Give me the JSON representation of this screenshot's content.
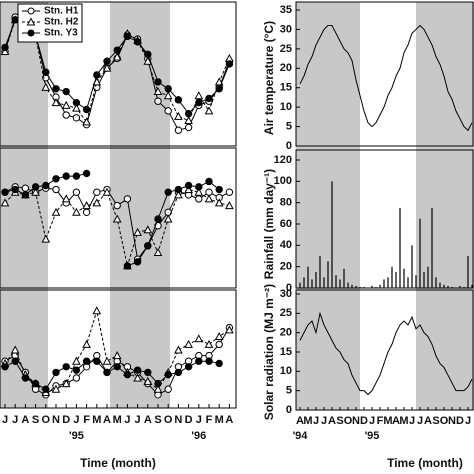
{
  "chart_data": [
    {
      "type": "line",
      "ylim": [
        0,
        100
      ],
      "legend": "upper left",
      "series": [
        {
          "name": "Stn. H1",
          "color": "#000",
          "marker": "open-circle",
          "dash": false,
          "values": [
            67,
            92,
            83,
            79,
            48,
            34,
            21,
            19,
            14,
            41,
            55,
            62,
            79,
            76,
            62,
            31,
            24,
            10,
            12,
            28,
            31,
            41,
            60
          ]
        },
        {
          "name": "Stn. H2",
          "color": "#000",
          "marker": "open-triangle",
          "dash": true,
          "values": [
            67,
            90,
            82,
            78,
            41,
            30,
            28,
            26,
            16,
            45,
            55,
            63,
            80,
            75,
            60,
            38,
            35,
            20,
            17,
            35,
            24,
            45,
            62
          ]
        },
        {
          "name": "Stn. Y3",
          "color": "#000",
          "marker": "filled-circle",
          "dash": false,
          "values": [
            70,
            90,
            84,
            79,
            52,
            40,
            38,
            30,
            25,
            50,
            60,
            68,
            78,
            74,
            65,
            45,
            40,
            32,
            22,
            30,
            33,
            40,
            58
          ]
        }
      ]
    },
    {
      "type": "line",
      "ylim": [
        0,
        100
      ],
      "series": [
        {
          "color": "#000",
          "marker": "open-circle",
          "dash": false,
          "values": [
            70,
            74,
            73,
            70,
            73,
            72,
            62,
            70,
            55,
            70,
            72,
            60,
            65,
            20,
            30,
            45,
            55,
            70,
            68,
            65,
            70,
            66,
            70
          ]
        },
        {
          "color": "#000",
          "marker": "open-triangle",
          "dash": true,
          "values": [
            62,
            70,
            68,
            70,
            35,
            55,
            65,
            55,
            60,
            62,
            70,
            50,
            15,
            40,
            42,
            25,
            50,
            68,
            72,
            70,
            65,
            62,
            60
          ]
        },
        {
          "color": "#000",
          "marker": "filled-circle",
          "dash": false,
          "values": [
            70,
            72,
            68,
            74,
            75,
            80,
            82,
            82,
            84,
            null,
            null,
            null,
            15,
            18,
            30,
            50,
            70,
            72,
            75,
            74,
            78,
            72,
            null
          ]
        }
      ]
    },
    {
      "type": "line",
      "ylim": [
        0,
        100
      ],
      "x_label": "Time (month)",
      "categories": [
        "J",
        "J",
        "A",
        "S",
        "O",
        "N",
        "D",
        "J",
        "F",
        "M",
        "A",
        "M",
        "J",
        "J",
        "A",
        "S",
        "O",
        "N",
        "D",
        "J",
        "F",
        "M",
        "A"
      ],
      "year_labels": [
        null,
        null,
        null,
        null,
        null,
        null,
        null,
        "'95",
        null,
        null,
        null,
        null,
        null,
        null,
        null,
        null,
        null,
        null,
        null,
        "'96",
        null,
        null,
        null
      ],
      "series": [
        {
          "color": "#000",
          "marker": "open-circle",
          "dash": false,
          "values": [
            40,
            45,
            30,
            15,
            10,
            18,
            20,
            25,
            35,
            45,
            30,
            40,
            35,
            30,
            20,
            10,
            15,
            35,
            40,
            45,
            45,
            55,
            70
          ]
        },
        {
          "color": "#000",
          "marker": "open-triangle",
          "dash": true,
          "values": [
            38,
            50,
            28,
            20,
            12,
            15,
            20,
            40,
            55,
            85,
            40,
            45,
            30,
            25,
            22,
            15,
            30,
            50,
            55,
            60,
            55,
            62,
            68
          ]
        },
        {
          "color": "#000",
          "marker": "filled-circle",
          "dash": false,
          "values": [
            35,
            40,
            25,
            20,
            15,
            30,
            35,
            32,
            40,
            40,
            30,
            35,
            28,
            32,
            30,
            20,
            28,
            30,
            35,
            40,
            40,
            38,
            null
          ]
        }
      ]
    },
    {
      "type": "line",
      "y_label": "Air temperature (°C)",
      "ylim": [
        0,
        35
      ],
      "yticks": [
        0,
        5,
        10,
        15,
        20,
        25,
        30,
        35
      ],
      "color": "#000",
      "values": [
        16,
        18,
        21,
        23,
        26,
        28,
        30,
        31,
        31,
        29,
        27,
        25,
        24,
        22,
        17,
        13,
        9,
        6,
        5,
        6,
        8,
        10,
        13,
        15,
        18,
        20,
        24,
        26,
        29,
        30,
        31,
        30,
        28,
        26,
        23,
        21,
        18,
        14,
        12,
        9,
        7,
        5,
        4,
        6
      ]
    },
    {
      "type": "bar",
      "y_label": "Rainfall (mm day⁻¹)",
      "ylim": [
        0,
        120
      ],
      "yticks": [
        0,
        20,
        40,
        60,
        80,
        100,
        120
      ],
      "color": "#000",
      "values": [
        5,
        10,
        20,
        8,
        15,
        30,
        10,
        25,
        100,
        12,
        8,
        18,
        5,
        3,
        2,
        1,
        1,
        0,
        2,
        1,
        3,
        8,
        10,
        20,
        15,
        75,
        18,
        10,
        40,
        12,
        65,
        15,
        20,
        75,
        10,
        5,
        3,
        2,
        1,
        0,
        2,
        1,
        30,
        3
      ]
    },
    {
      "type": "line",
      "y_label": "Solar radiation (MJ m⁻²)",
      "ylim": [
        0,
        30
      ],
      "yticks": [
        0,
        5,
        10,
        15,
        20,
        25,
        30
      ],
      "color": "#000",
      "x_label": "Time (month)",
      "categories": [
        "A",
        null,
        "M",
        null,
        "J",
        null,
        "J",
        null,
        "A",
        null,
        "S",
        null,
        "O",
        null,
        "N",
        null,
        "D",
        null,
        "J",
        null,
        "F",
        null,
        "M",
        null,
        "A",
        null,
        "M",
        null,
        "J",
        null,
        "J",
        null,
        "A",
        null,
        "S",
        null,
        "O",
        null,
        "N",
        null,
        "D",
        null,
        "J",
        null
      ],
      "year_labels": [
        "'94",
        null,
        null,
        null,
        null,
        null,
        null,
        null,
        null,
        null,
        null,
        null,
        null,
        null,
        null,
        null,
        null,
        null,
        "'95",
        null,
        null,
        null,
        null,
        null,
        null,
        null,
        null,
        null,
        null,
        null,
        null,
        null,
        null,
        null,
        null,
        null,
        null,
        null,
        null,
        null,
        null,
        null,
        null,
        null
      ],
      "values": [
        18,
        20,
        22,
        23,
        20,
        25,
        22,
        20,
        18,
        16,
        15,
        13,
        12,
        9,
        7,
        5,
        5,
        4,
        5,
        7,
        9,
        12,
        15,
        17,
        20,
        22,
        23,
        22,
        24,
        21,
        22,
        20,
        19,
        17,
        14,
        12,
        11,
        9,
        7,
        5,
        5,
        5,
        6,
        8
      ]
    }
  ]
}
